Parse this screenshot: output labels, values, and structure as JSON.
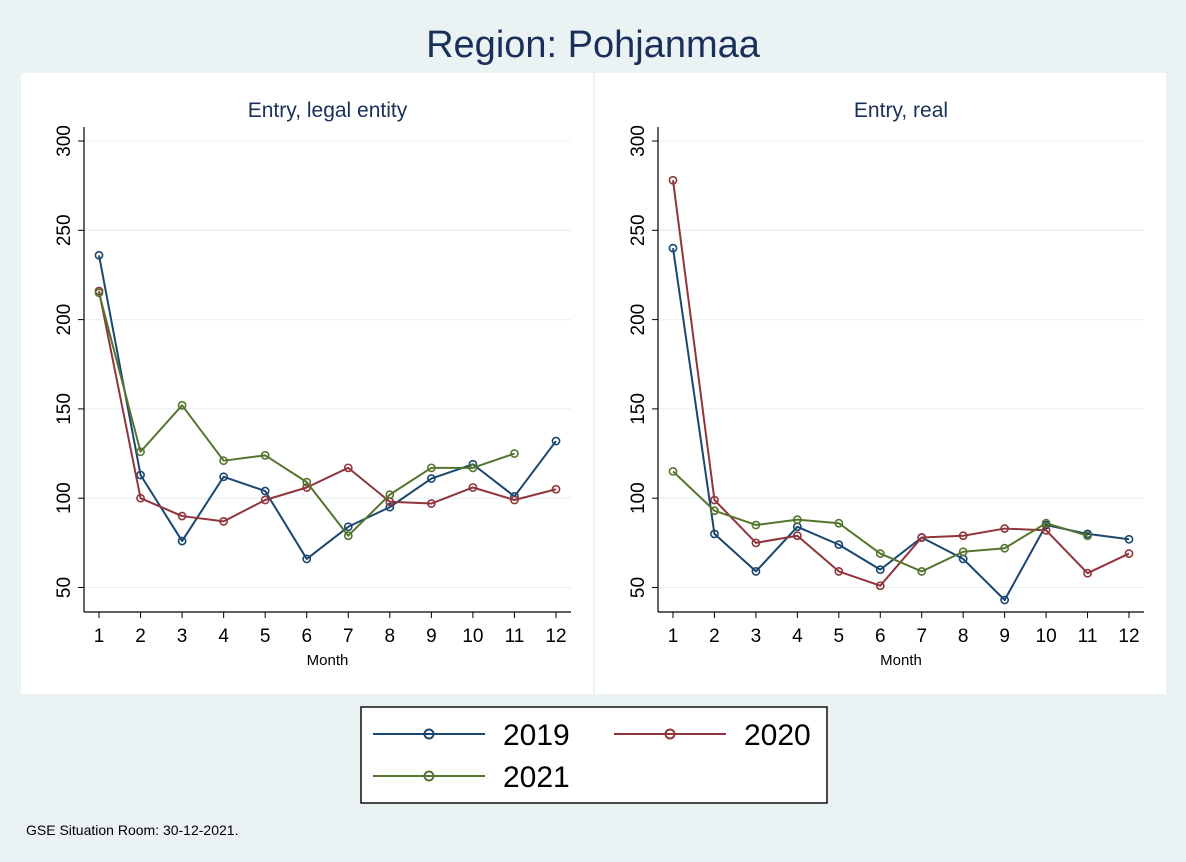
{
  "title": "Region: Pohjanmaa",
  "note": "GSE Situation Room: 30-12-2021.",
  "colors": {
    "background": "#eaf2f3",
    "panel": "#ffffff",
    "grid": "#eaf2f3",
    "title": "#1a2f5a",
    "series": [
      "#1a476f",
      "#90353b",
      "#55752f"
    ]
  },
  "legend": {
    "placement": "bottom",
    "items": [
      "2019",
      "2020",
      "2021"
    ]
  },
  "chart_data": [
    {
      "type": "line",
      "title": "Entry, legal entity",
      "xlabel": "Month",
      "ylabel": "",
      "x": [
        1,
        2,
        3,
        4,
        5,
        6,
        7,
        8,
        9,
        10,
        11,
        12
      ],
      "ylim": [
        45,
        307
      ],
      "yticks": [
        50,
        100,
        150,
        200,
        250,
        300
      ],
      "grid": true,
      "series": [
        {
          "name": "2019",
          "values": [
            236,
            113,
            76,
            112,
            104,
            66,
            84,
            95,
            111,
            119,
            101,
            132
          ]
        },
        {
          "name": "2020",
          "values": [
            216,
            100,
            90,
            87,
            99,
            106,
            117,
            98,
            97,
            106,
            99,
            105
          ]
        },
        {
          "name": "2021",
          "values": [
            215,
            126,
            152,
            121,
            124,
            109,
            79,
            102,
            117,
            117,
            125,
            null
          ]
        }
      ]
    },
    {
      "type": "line",
      "title": "Entry, real",
      "xlabel": "Month",
      "ylabel": "",
      "x": [
        1,
        2,
        3,
        4,
        5,
        6,
        7,
        8,
        9,
        10,
        11,
        12
      ],
      "ylim": [
        38,
        307
      ],
      "yticks": [
        50,
        100,
        150,
        200,
        250,
        300
      ],
      "grid": true,
      "series": [
        {
          "name": "2019",
          "values": [
            240,
            80,
            59,
            84,
            74,
            60,
            78,
            66,
            43,
            85,
            80,
            77
          ]
        },
        {
          "name": "2020",
          "values": [
            278,
            99,
            75,
            79,
            59,
            51,
            78,
            79,
            83,
            82,
            58,
            69
          ]
        },
        {
          "name": "2021",
          "values": [
            115,
            93,
            85,
            88,
            86,
            69,
            59,
            70,
            72,
            86,
            79,
            null
          ]
        }
      ]
    }
  ]
}
